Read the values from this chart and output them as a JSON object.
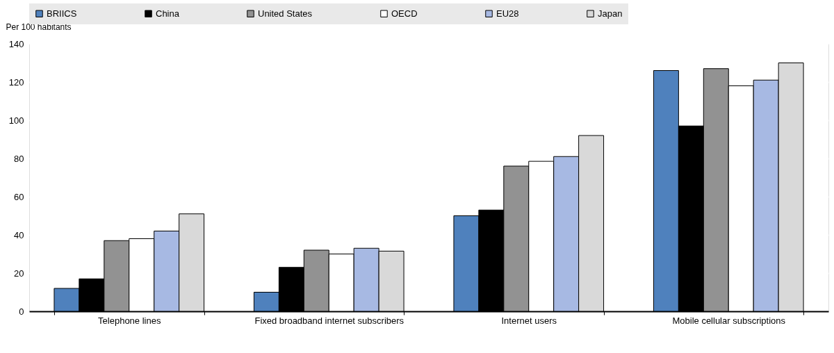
{
  "chart_data": {
    "type": "bar",
    "ylabel": "Per 100 habitants",
    "categories": [
      "Telephone lines",
      "Fixed broadband internet subscribers",
      "Internet users",
      "Mobile cellular subscriptions"
    ],
    "series": [
      {
        "name": "BRIICS",
        "color": "#4f81bd",
        "values": [
          12,
          10,
          50,
          126
        ]
      },
      {
        "name": "China",
        "color": "#000000",
        "values": [
          17,
          23,
          53,
          97
        ]
      },
      {
        "name": "United States",
        "color": "#929292",
        "values": [
          37,
          32,
          76,
          127
        ]
      },
      {
        "name": "OECD",
        "color": "#ffffff",
        "values": [
          38,
          30,
          78.5,
          118
        ]
      },
      {
        "name": "EU28",
        "color": "#a7b9e3",
        "values": [
          42,
          33,
          81,
          121
        ]
      },
      {
        "name": "Japan",
        "color": "#d9d9d9",
        "values": [
          51,
          31.5,
          92,
          130
        ]
      }
    ],
    "ylim": [
      0,
      140
    ],
    "yticks": [
      0,
      20,
      40,
      60,
      80,
      100,
      120,
      140
    ],
    "grid": true,
    "legend": "top"
  }
}
